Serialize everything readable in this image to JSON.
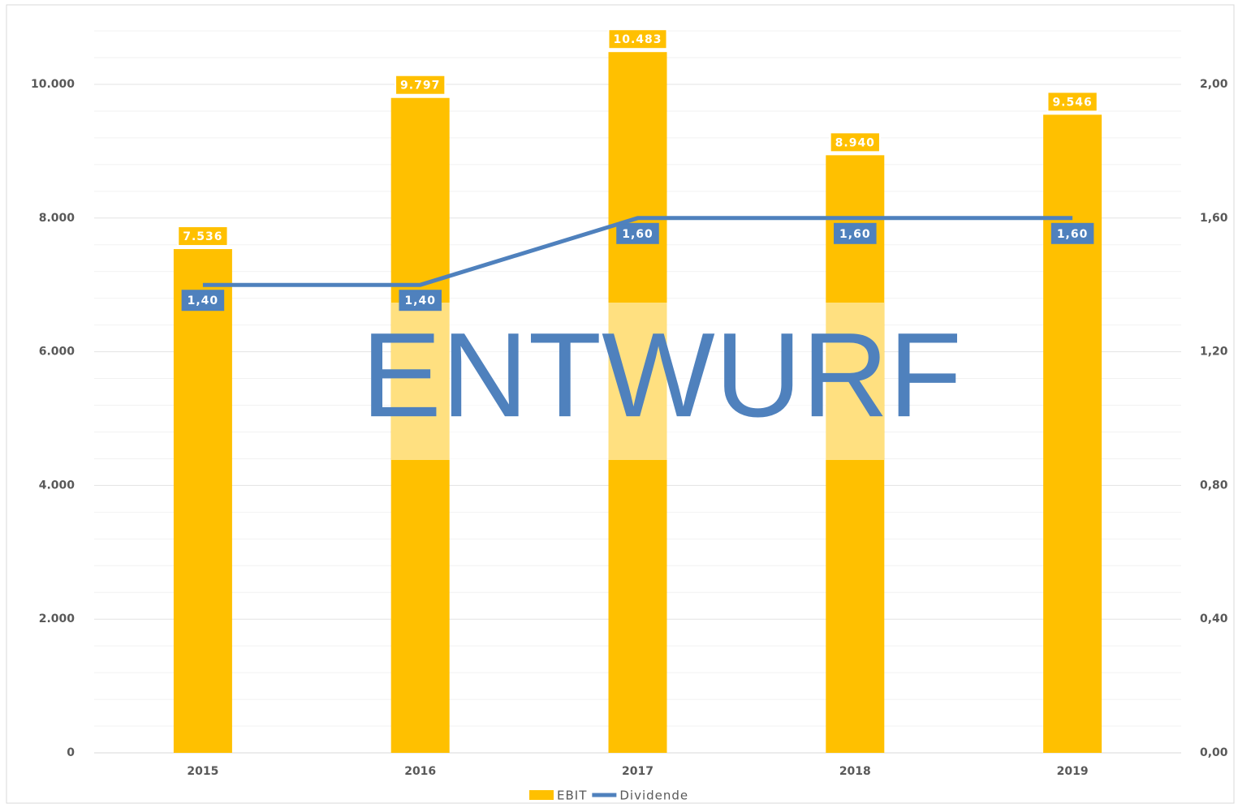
{
  "chart_data": {
    "type": "bar_line",
    "categories": [
      "2015",
      "2016",
      "2017",
      "2018",
      "2019"
    ],
    "series": [
      {
        "name": "EBIT",
        "type": "bar",
        "color": "#ffc000",
        "values": [
          7536,
          9797,
          10483,
          8940,
          9546
        ],
        "value_labels": [
          "7.536",
          "9.797",
          "10.483",
          "8.940",
          "9.546"
        ]
      },
      {
        "name": "Dividende",
        "type": "line",
        "axis": "y2",
        "color": "#4f81bd",
        "values": [
          1.4,
          1.4,
          1.6,
          1.6,
          1.6
        ],
        "value_labels": [
          "1,40",
          "1,40",
          "1,60",
          "1,60",
          "1,60"
        ]
      }
    ],
    "ylim": [
      0,
      10800
    ],
    "yticks": [
      0,
      {
        "value": 2000,
        "label": "2.000"
      },
      {
        "value": 4000,
        "label": "4.000"
      },
      {
        "value": 6000,
        "label": "6.000"
      },
      {
        "value": 8000,
        "label": "8.000"
      },
      {
        "value": 10000,
        "label": "10.000"
      }
    ],
    "y_minor_ticks": [
      400,
      800,
      1200,
      1600,
      2400,
      2800,
      3200,
      3600,
      4400,
      4800,
      5200,
      5600,
      6400,
      6800,
      7200,
      7600,
      8400,
      8800,
      9200,
      9600,
      10400,
      10800
    ],
    "y2lim": [
      0,
      2.16
    ],
    "y2ticks": [
      {
        "value": 0,
        "label": "0,00"
      },
      {
        "value": 0.4,
        "label": "0,40"
      },
      {
        "value": 0.8,
        "label": "0,80"
      },
      {
        "value": 1.2,
        "label": "1,20"
      },
      {
        "value": 1.6,
        "label": "1,60"
      },
      {
        "value": 2.0,
        "label": "2,00"
      }
    ],
    "grid": true,
    "legend": "bottom",
    "watermark": "ENTWURF"
  }
}
